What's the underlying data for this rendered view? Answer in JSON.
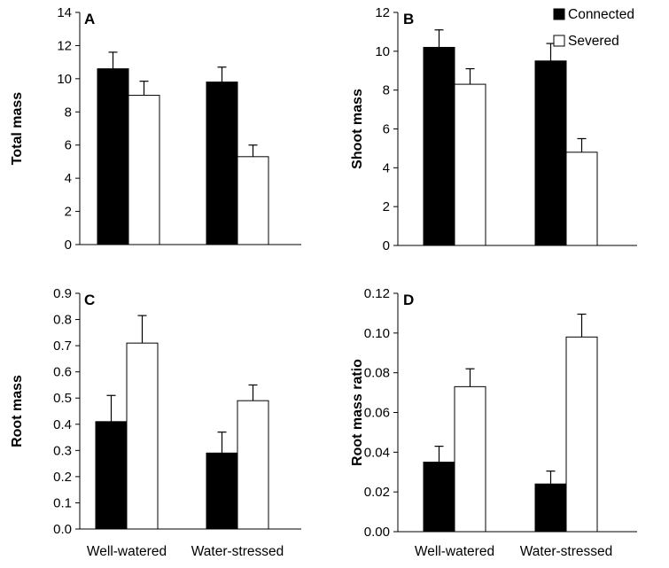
{
  "legend": [
    {
      "label": "Connected",
      "color": "#000000"
    },
    {
      "label": "Severed",
      "color": "#ffffff"
    }
  ],
  "chart_data": [
    {
      "panel": "A",
      "type": "bar",
      "ylabel": "Total mass",
      "ylim": [
        0,
        14
      ],
      "yticks": [
        "0",
        "2",
        "4",
        "6",
        "8",
        "10",
        "12",
        "14"
      ],
      "categories": [
        "",
        ""
      ],
      "series": [
        {
          "name": "Connected",
          "values": [
            10.6,
            9.8
          ],
          "errors": [
            1.0,
            0.9
          ]
        },
        {
          "name": "Severed",
          "values": [
            9.0,
            5.3
          ],
          "errors": [
            0.85,
            0.7
          ]
        }
      ]
    },
    {
      "panel": "B",
      "type": "bar",
      "ylabel": "Shoot mass",
      "ylim": [
        0,
        12
      ],
      "yticks": [
        "0",
        "2",
        "4",
        "6",
        "8",
        "10",
        "12"
      ],
      "categories": [
        "",
        ""
      ],
      "series": [
        {
          "name": "Connected",
          "values": [
            10.2,
            9.5
          ],
          "errors": [
            0.9,
            0.9
          ]
        },
        {
          "name": "Severed",
          "values": [
            8.3,
            4.8
          ],
          "errors": [
            0.8,
            0.7
          ]
        }
      ]
    },
    {
      "panel": "C",
      "type": "bar",
      "ylabel": "Root mass",
      "ylim": [
        0,
        0.9
      ],
      "yticks": [
        "0.0",
        "0.1",
        "0.2",
        "0.3",
        "0.4",
        "0.5",
        "0.6",
        "0.7",
        "0.8",
        "0.9"
      ],
      "categories": [
        "Well-watered",
        "Water-stressed"
      ],
      "series": [
        {
          "name": "Connected",
          "values": [
            0.41,
            0.29
          ],
          "errors": [
            0.1,
            0.08
          ]
        },
        {
          "name": "Severed",
          "values": [
            0.71,
            0.49
          ],
          "errors": [
            0.105,
            0.06
          ]
        }
      ]
    },
    {
      "panel": "D",
      "type": "bar",
      "ylabel": "Root mass ratio",
      "ylim": [
        0,
        0.12
      ],
      "yticks": [
        "0.00",
        "0.02",
        "0.04",
        "0.06",
        "0.08",
        "0.10",
        "0.12"
      ],
      "categories": [
        "Well-watered",
        "Water-stressed"
      ],
      "series": [
        {
          "name": "Connected",
          "values": [
            0.035,
            0.024
          ],
          "errors": [
            0.008,
            0.0065
          ]
        },
        {
          "name": "Severed",
          "values": [
            0.073,
            0.098
          ],
          "errors": [
            0.009,
            0.0115
          ]
        }
      ]
    }
  ]
}
